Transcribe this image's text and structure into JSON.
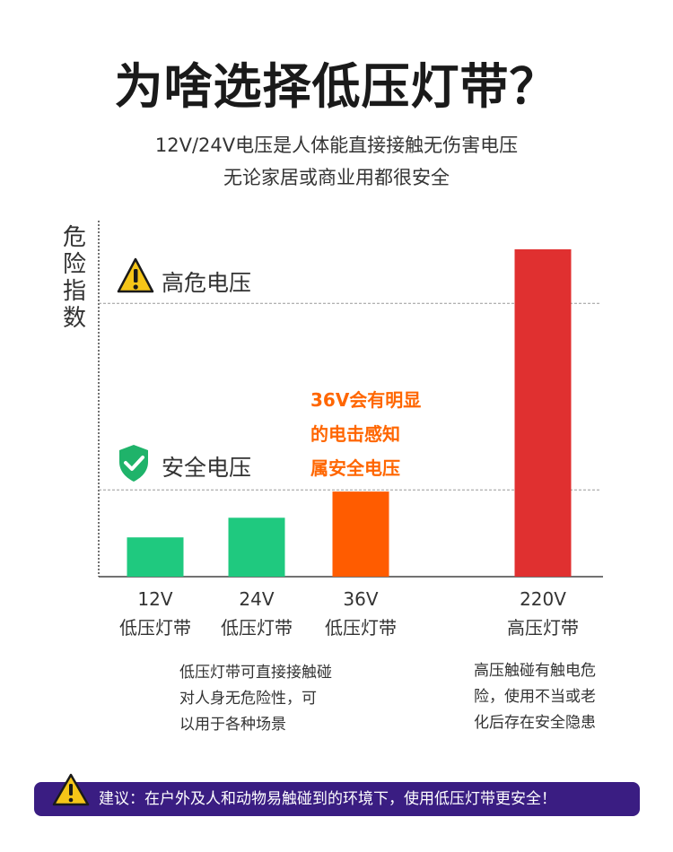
{
  "header": {
    "title": "为啥选择低压灯带？",
    "subtitle_line1": "12V/24V电压是人体能直接接触无伤害电压",
    "subtitle_line2": "无论家居或商业用都很安全"
  },
  "chart_data": {
    "type": "bar",
    "ylabel": "危险指数",
    "categories": [
      "12V 低压灯带",
      "24V 低压灯带",
      "36V 低压灯带",
      "220V 高压灯带"
    ],
    "category_lines": [
      [
        "12V",
        "低压灯带"
      ],
      [
        "24V",
        "低压灯带"
      ],
      [
        "36V",
        "低压灯带"
      ],
      [
        "220V",
        "高压灯带"
      ]
    ],
    "values": [
      12,
      18,
      26,
      100
    ],
    "ylim": [
      0,
      100
    ],
    "bar_colors": [
      "#1fc97f",
      "#1fc97f",
      "#ff5c00",
      "#e03030"
    ],
    "reference_lines": [
      {
        "label": "安全电压",
        "value": 26.5,
        "icon": "shield-check-icon",
        "color": "#1fb36a"
      },
      {
        "label": "高危电压",
        "value": 83.5,
        "icon": "warning-triangle-icon",
        "color": "#f5c518"
      }
    ],
    "annotation": [
      "36V会有明显",
      "的电击感知",
      "属安全电压"
    ],
    "annotation_color": "#ff6600",
    "grid": false
  },
  "descriptions": {
    "low_voltage": [
      "低压灯带可直接接触碰",
      "对人身无危险性，可",
      "以用于各种场景"
    ],
    "high_voltage": [
      "高压触碰有触电危",
      "险，使用不当或老",
      "化后存在安全隐患"
    ]
  },
  "banner": {
    "text": "建议：在户外及人和动物易触碰到的环境下，使用低压灯带更安全！",
    "icon": "warning-triangle-icon",
    "background": "#3a1d82"
  }
}
